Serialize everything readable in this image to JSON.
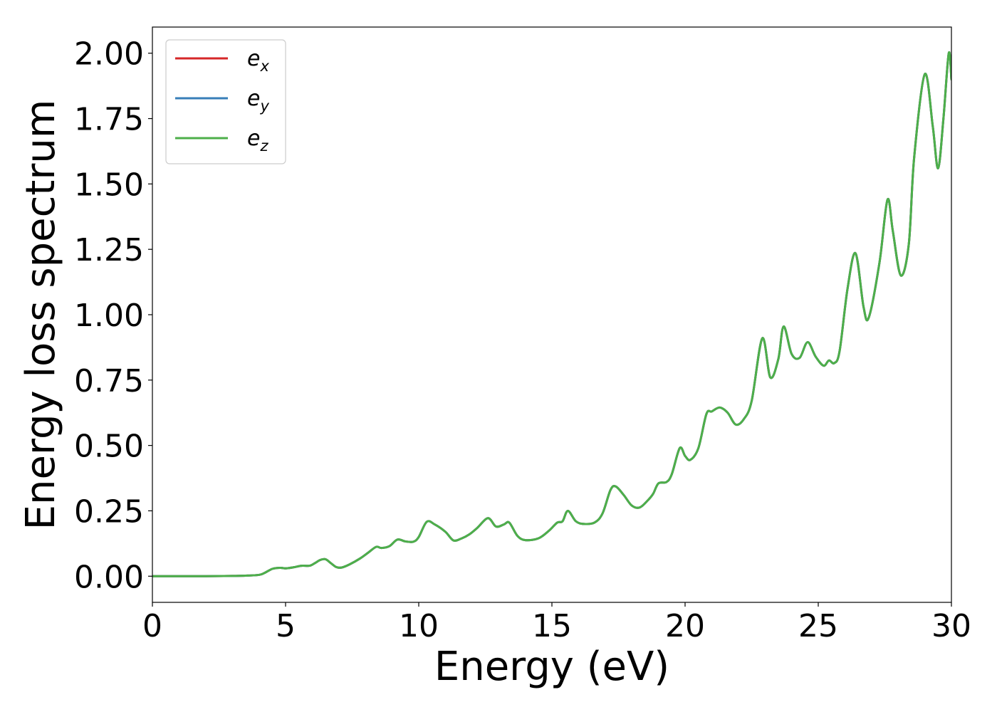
{
  "chart_data": {
    "type": "line",
    "xlabel": "Energy (eV)",
    "ylabel": "Energy loss spectrum",
    "xlim": [
      0,
      30
    ],
    "ylim": [
      -0.1,
      2.1
    ],
    "grid": false,
    "legend_position": "top-left",
    "x_ticks": [
      0,
      5,
      10,
      15,
      20,
      25,
      30
    ],
    "x_tick_labels": [
      "0",
      "5",
      "10",
      "15",
      "20",
      "25",
      "30"
    ],
    "y_ticks": [
      0,
      0.25,
      0.5,
      0.75,
      1.0,
      1.25,
      1.5,
      1.75,
      2.0
    ],
    "y_tick_labels": [
      "0.00",
      "0.25",
      "0.50",
      "0.75",
      "1.00",
      "1.25",
      "1.50",
      "1.75",
      "2.00"
    ],
    "x": [
      0,
      1,
      2,
      3,
      3.5,
      4,
      4.2,
      4.5,
      4.8,
      5,
      5.3,
      5.6,
      5.9,
      6.1,
      6.3,
      6.5,
      6.7,
      6.9,
      7.1,
      7.4,
      7.8,
      8.1,
      8.4,
      8.6,
      8.9,
      9.2,
      9.5,
      9.8,
      10,
      10.3,
      10.6,
      11,
      11.3,
      11.6,
      11.9,
      12.2,
      12.6,
      12.9,
      13.2,
      13.4,
      13.7,
      14,
      14.5,
      14.9,
      15.2,
      15.4,
      15.6,
      15.9,
      16.2,
      16.6,
      16.9,
      17.2,
      17.4,
      17.7,
      18,
      18.3,
      18.6,
      18.8,
      19,
      19.3,
      19.5,
      19.8,
      20,
      20.2,
      20.5,
      20.8,
      21,
      21.3,
      21.6,
      21.9,
      22.2,
      22.5,
      22.9,
      23.2,
      23.5,
      23.7,
      24,
      24.3,
      24.6,
      24.9,
      25.2,
      25.4,
      25.6,
      25.8,
      26.1,
      26.4,
      26.7,
      26.9,
      27.3,
      27.6,
      27.8,
      28.1,
      28.4,
      28.6,
      29,
      29.3,
      29.5,
      29.7,
      29.9,
      30
    ],
    "series": [
      {
        "name": "ex",
        "color": "#d62728",
        "values": [
          0,
          0,
          0,
          0.001,
          0.002,
          0.005,
          0.012,
          0.028,
          0.032,
          0.03,
          0.034,
          0.04,
          0.04,
          0.05,
          0.062,
          0.065,
          0.05,
          0.035,
          0.033,
          0.045,
          0.068,
          0.09,
          0.112,
          0.108,
          0.115,
          0.14,
          0.133,
          0.132,
          0.15,
          0.208,
          0.198,
          0.17,
          0.137,
          0.144,
          0.16,
          0.185,
          0.222,
          0.19,
          0.198,
          0.205,
          0.155,
          0.138,
          0.145,
          0.175,
          0.205,
          0.21,
          0.25,
          0.21,
          0.2,
          0.205,
          0.24,
          0.33,
          0.343,
          0.31,
          0.27,
          0.263,
          0.29,
          0.315,
          0.355,
          0.36,
          0.39,
          0.49,
          0.46,
          0.445,
          0.49,
          0.62,
          0.63,
          0.645,
          0.625,
          0.58,
          0.6,
          0.67,
          0.91,
          0.76,
          0.83,
          0.955,
          0.85,
          0.835,
          0.895,
          0.84,
          0.805,
          0.825,
          0.815,
          0.86,
          1.1,
          1.235,
          1.03,
          0.99,
          1.2,
          1.44,
          1.32,
          1.15,
          1.27,
          1.6,
          1.92,
          1.72,
          1.56,
          1.75,
          2.0,
          1.9
        ]
      },
      {
        "name": "ey",
        "color": "#377eb8",
        "values": [
          0,
          0,
          0,
          0.001,
          0.002,
          0.005,
          0.012,
          0.028,
          0.032,
          0.03,
          0.034,
          0.04,
          0.04,
          0.05,
          0.062,
          0.065,
          0.05,
          0.035,
          0.033,
          0.045,
          0.068,
          0.09,
          0.112,
          0.108,
          0.115,
          0.14,
          0.133,
          0.132,
          0.15,
          0.208,
          0.198,
          0.17,
          0.137,
          0.144,
          0.16,
          0.185,
          0.222,
          0.19,
          0.198,
          0.205,
          0.155,
          0.138,
          0.145,
          0.175,
          0.205,
          0.21,
          0.25,
          0.21,
          0.2,
          0.205,
          0.24,
          0.33,
          0.343,
          0.31,
          0.27,
          0.263,
          0.29,
          0.315,
          0.355,
          0.36,
          0.39,
          0.49,
          0.46,
          0.445,
          0.49,
          0.62,
          0.63,
          0.645,
          0.625,
          0.58,
          0.6,
          0.67,
          0.91,
          0.76,
          0.83,
          0.955,
          0.85,
          0.835,
          0.895,
          0.84,
          0.805,
          0.825,
          0.815,
          0.86,
          1.1,
          1.235,
          1.03,
          0.99,
          1.2,
          1.44,
          1.32,
          1.15,
          1.27,
          1.6,
          1.92,
          1.72,
          1.56,
          1.75,
          2.0,
          1.9
        ]
      },
      {
        "name": "ez",
        "color": "#4daf4a",
        "values": [
          0,
          0,
          0,
          0.001,
          0.002,
          0.005,
          0.012,
          0.028,
          0.032,
          0.03,
          0.034,
          0.04,
          0.04,
          0.05,
          0.062,
          0.065,
          0.05,
          0.035,
          0.033,
          0.045,
          0.068,
          0.09,
          0.112,
          0.108,
          0.115,
          0.14,
          0.133,
          0.132,
          0.15,
          0.208,
          0.198,
          0.17,
          0.137,
          0.144,
          0.16,
          0.185,
          0.222,
          0.19,
          0.198,
          0.205,
          0.155,
          0.138,
          0.145,
          0.175,
          0.205,
          0.21,
          0.25,
          0.21,
          0.2,
          0.205,
          0.24,
          0.33,
          0.343,
          0.31,
          0.27,
          0.263,
          0.29,
          0.315,
          0.355,
          0.36,
          0.39,
          0.49,
          0.46,
          0.445,
          0.49,
          0.62,
          0.63,
          0.645,
          0.625,
          0.58,
          0.6,
          0.67,
          0.91,
          0.76,
          0.83,
          0.955,
          0.85,
          0.835,
          0.895,
          0.84,
          0.805,
          0.825,
          0.815,
          0.86,
          1.1,
          1.235,
          1.03,
          0.99,
          1.2,
          1.44,
          1.32,
          1.15,
          1.27,
          1.6,
          1.92,
          1.72,
          1.56,
          1.75,
          2.0,
          1.9
        ]
      }
    ],
    "legend": [
      {
        "base": "e",
        "sub": "x",
        "color": "#d62728"
      },
      {
        "base": "e",
        "sub": "y",
        "color": "#377eb8"
      },
      {
        "base": "e",
        "sub": "z",
        "color": "#4daf4a"
      }
    ]
  }
}
